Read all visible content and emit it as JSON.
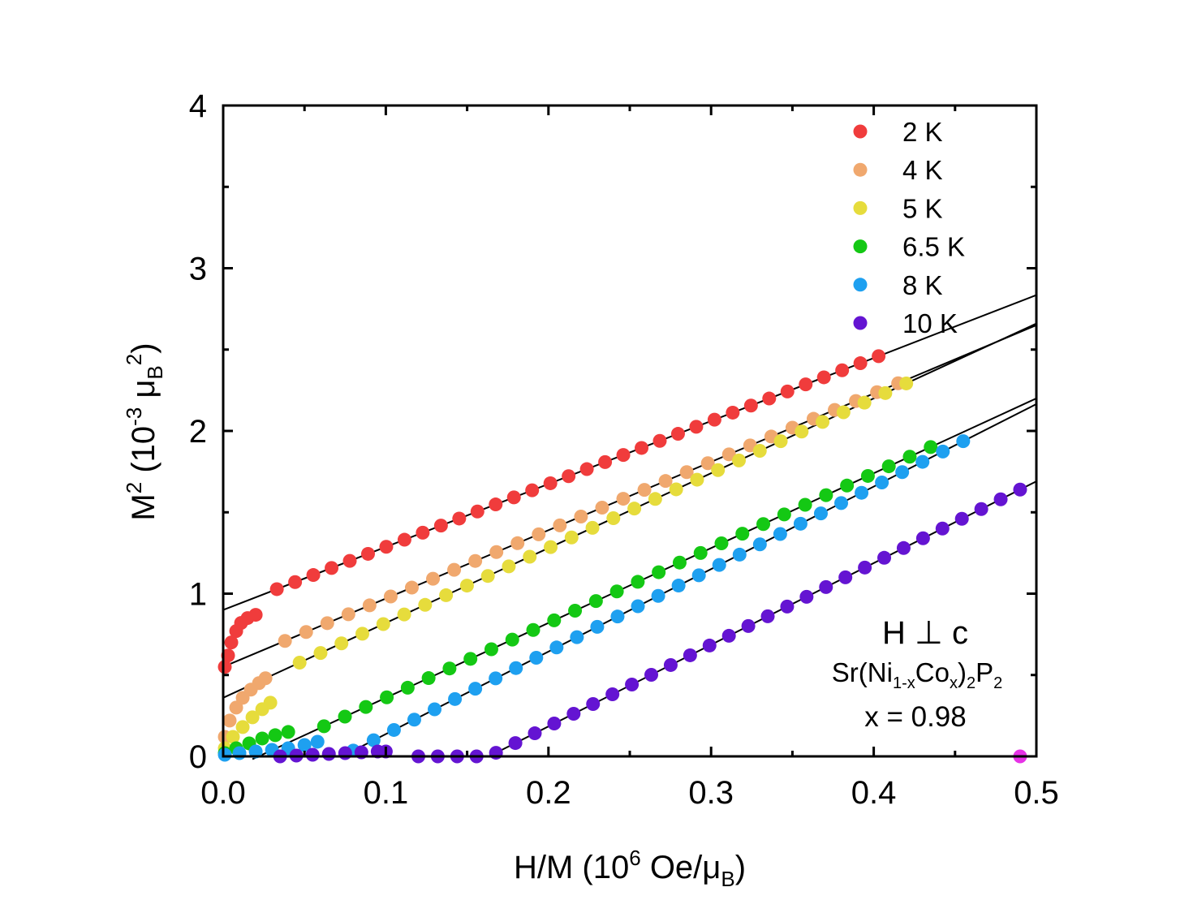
{
  "chart_data": {
    "type": "scatter",
    "xlabel": {
      "prefix": "H/M (10",
      "exp": "6",
      "mid": " Oe/μ",
      "sub": "B",
      "suffix": ")"
    },
    "ylabel": {
      "base": "M",
      "sup1": "2",
      "mid": " (10",
      "exp": "-3",
      "mid2": " μ",
      "sub": "B",
      "sup2": "2",
      "suffix": ")"
    },
    "xlim": [
      0.0,
      0.5
    ],
    "ylim": [
      0,
      4
    ],
    "xticks": [
      0.0,
      0.1,
      0.2,
      0.3,
      0.4,
      0.5
    ],
    "xtick_labels": [
      "0.0",
      "0.1",
      "0.2",
      "0.3",
      "0.4",
      "0.5"
    ],
    "yticks": [
      0,
      1,
      2,
      3,
      4
    ],
    "ytick_labels": [
      "0",
      "1",
      "2",
      "3",
      "4"
    ],
    "legend_position": "top-right",
    "annotations": {
      "orientation": "H ⊥ c",
      "formula": {
        "p1": "Sr(Ni",
        "s1": "1-x",
        "p2": "Co",
        "s2": "x",
        "p3": ")",
        "s3": "2",
        "p4": "P",
        "s4": "2"
      },
      "composition": "x = 0.98"
    },
    "series": [
      {
        "name": "2 K",
        "color": "#f03c3c",
        "low": [
          [
            0.001,
            0.55
          ],
          [
            0.003,
            0.62
          ],
          [
            0.005,
            0.7
          ],
          [
            0.008,
            0.77
          ],
          [
            0.011,
            0.82
          ],
          [
            0.015,
            0.85
          ],
          [
            0.02,
            0.87
          ]
        ],
        "x_start": 0.033,
        "x_end": 0.403,
        "n": 34,
        "fit": {
          "intercept": 0.9,
          "slope": 3.87,
          "x0": 0.0,
          "x1": 0.5
        }
      },
      {
        "name": "4 K",
        "color": "#f0a86e",
        "low": [
          [
            0.001,
            0.12
          ],
          [
            0.004,
            0.22
          ],
          [
            0.008,
            0.3
          ],
          [
            0.012,
            0.36
          ],
          [
            0.017,
            0.41
          ],
          [
            0.022,
            0.45
          ],
          [
            0.026,
            0.48
          ]
        ],
        "x_start": 0.038,
        "x_end": 0.415,
        "n": 30,
        "fit": {
          "intercept": 0.55,
          "slope": 4.2,
          "x0": 0.0,
          "x1": 0.5
        }
      },
      {
        "name": "5 K",
        "color": "#e6dc3c",
        "low": [
          [
            0.001,
            0.05
          ],
          [
            0.006,
            0.12
          ],
          [
            0.012,
            0.18
          ],
          [
            0.018,
            0.24
          ],
          [
            0.024,
            0.29
          ],
          [
            0.029,
            0.33
          ]
        ],
        "x_start": 0.047,
        "x_end": 0.42,
        "n": 30,
        "fit": {
          "intercept": 0.36,
          "slope": 4.6,
          "x0": 0.0,
          "x1": 0.5
        }
      },
      {
        "name": "6.5 K",
        "color": "#14c814",
        "low": [
          [
            0.001,
            0.02
          ],
          [
            0.008,
            0.05
          ],
          [
            0.016,
            0.08
          ],
          [
            0.024,
            0.11
          ],
          [
            0.032,
            0.13
          ],
          [
            0.04,
            0.15
          ]
        ],
        "x_start": 0.062,
        "x_end": 0.435,
        "n": 30,
        "fit": {
          "intercept": -0.1,
          "slope": 4.6,
          "x0": 0.018,
          "x1": 0.5
        }
      },
      {
        "name": "8 K",
        "color": "#1ea0f0",
        "low": [
          [
            0.001,
            0.01
          ],
          [
            0.01,
            0.02
          ],
          [
            0.02,
            0.03
          ],
          [
            0.03,
            0.04
          ],
          [
            0.04,
            0.05
          ],
          [
            0.05,
            0.07
          ],
          [
            0.058,
            0.09
          ]
        ],
        "x_start": 0.08,
        "x_end": 0.455,
        "n": 31,
        "fit": {
          "intercept": -0.37,
          "slope": 5.07,
          "x0": 0.073,
          "x1": 0.5
        }
      },
      {
        "name": "10 K",
        "color": "#6414d2",
        "low": [
          [
            0.035,
            0.0
          ],
          [
            0.045,
            0.005
          ],
          [
            0.055,
            0.01
          ],
          [
            0.065,
            0.015
          ],
          [
            0.075,
            0.02
          ],
          [
            0.085,
            0.025
          ],
          [
            0.095,
            0.03
          ],
          [
            0.1,
            0.03
          ]
        ],
        "x_start": 0.12,
        "x_end": 0.49,
        "n": 32,
        "fit": {
          "intercept": -0.82,
          "slope": 5.02,
          "x0": 0.163,
          "x1": 0.5
        }
      }
    ],
    "extra_points": [
      {
        "x": 0.49,
        "y": 0.0,
        "color": "#e632e6"
      }
    ]
  }
}
